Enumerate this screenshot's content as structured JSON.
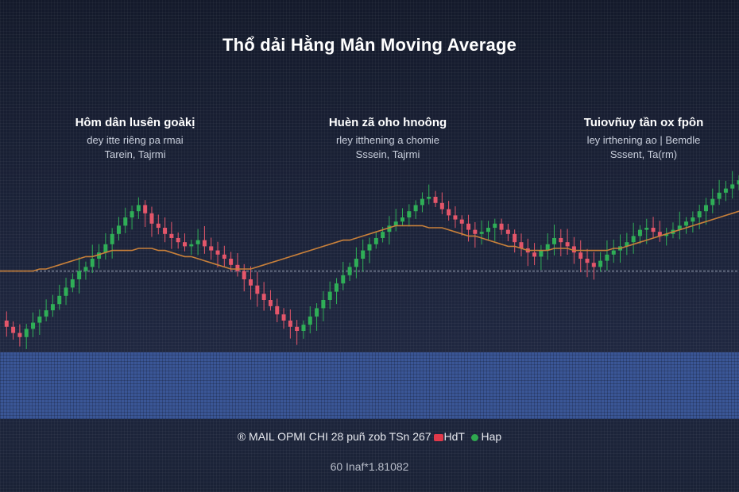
{
  "chart_data": {
    "type": "candlestick",
    "title": "Thổ dải Hằng Mân Moving Average",
    "annotations": [
      {
        "heading": "Hôm dân lusên goàkị",
        "line1": "dey itte riêng pa rmai",
        "line2": "Tarein, Tajrmi"
      },
      {
        "heading": "Huèn zã oho hnoông",
        "line1": "rley itthening a chomie",
        "line2": "Sssein, Tajrmi"
      },
      {
        "heading": "Tuiovñuy tần ox fpôn",
        "line1": "ley irthening ao | Bemdle",
        "line2": "Sssent, Ta(rm)"
      }
    ],
    "closes": [
      10,
      7,
      4,
      2,
      6,
      9,
      12,
      15,
      18,
      22,
      26,
      30,
      34,
      36,
      40,
      43,
      47,
      52,
      56,
      60,
      63,
      66,
      62,
      57,
      55,
      52,
      50,
      48,
      46,
      47,
      49,
      46,
      44,
      42,
      40,
      37,
      34,
      30,
      27,
      23,
      20,
      17,
      13,
      10,
      7,
      5,
      8,
      12,
      16,
      20,
      24,
      28,
      32,
      36,
      40,
      44,
      47,
      50,
      53,
      56,
      58,
      60,
      63,
      66,
      69,
      70,
      67,
      64,
      61,
      59,
      57,
      54,
      52,
      53,
      55,
      57,
      54,
      52,
      48,
      45,
      43,
      41,
      44,
      47,
      50,
      48,
      46,
      43,
      40,
      38,
      36,
      39,
      42,
      44,
      46,
      48,
      51,
      54,
      55,
      53,
      51,
      52,
      54,
      56,
      58,
      60,
      63,
      66,
      69,
      72,
      74,
      76,
      78
    ],
    "moving_average": [
      34,
      34,
      34,
      34,
      34,
      34,
      35,
      35,
      36,
      37,
      38,
      39,
      40,
      41,
      41,
      42,
      43,
      44,
      44,
      44,
      44,
      45,
      45,
      45,
      44,
      44,
      43,
      42,
      41,
      41,
      40,
      39,
      38,
      37,
      36,
      35,
      35,
      35,
      35,
      36,
      37,
      38,
      39,
      40,
      41,
      42,
      43,
      44,
      45,
      46,
      47,
      48,
      49,
      49,
      50,
      51,
      52,
      53,
      54,
      55,
      56,
      56,
      56,
      56,
      56,
      55,
      55,
      55,
      54,
      53,
      52,
      51,
      51,
      50,
      49,
      48,
      47,
      46,
      46,
      45,
      44,
      44,
      44,
      44,
      45,
      45,
      45,
      44,
      44,
      44,
      44,
      44,
      44,
      45,
      45,
      46,
      47,
      48,
      49,
      50,
      51,
      52,
      53,
      54,
      55,
      56,
      57,
      58,
      59,
      60,
      61,
      62,
      63
    ],
    "ylim": [
      0,
      100
    ],
    "horizontal_reference": 34,
    "colors": {
      "up": "#2fae57",
      "down": "#e4566a",
      "ma": "#c8803a",
      "ref": "#8e97ab"
    }
  },
  "footer": {
    "part1": "® MAIL OPMI CHI  28 puñ zob  TSn 267",
    "part2": "HdT",
    "part3": "Hap",
    "sub": "60 Inaf*1.81082"
  }
}
